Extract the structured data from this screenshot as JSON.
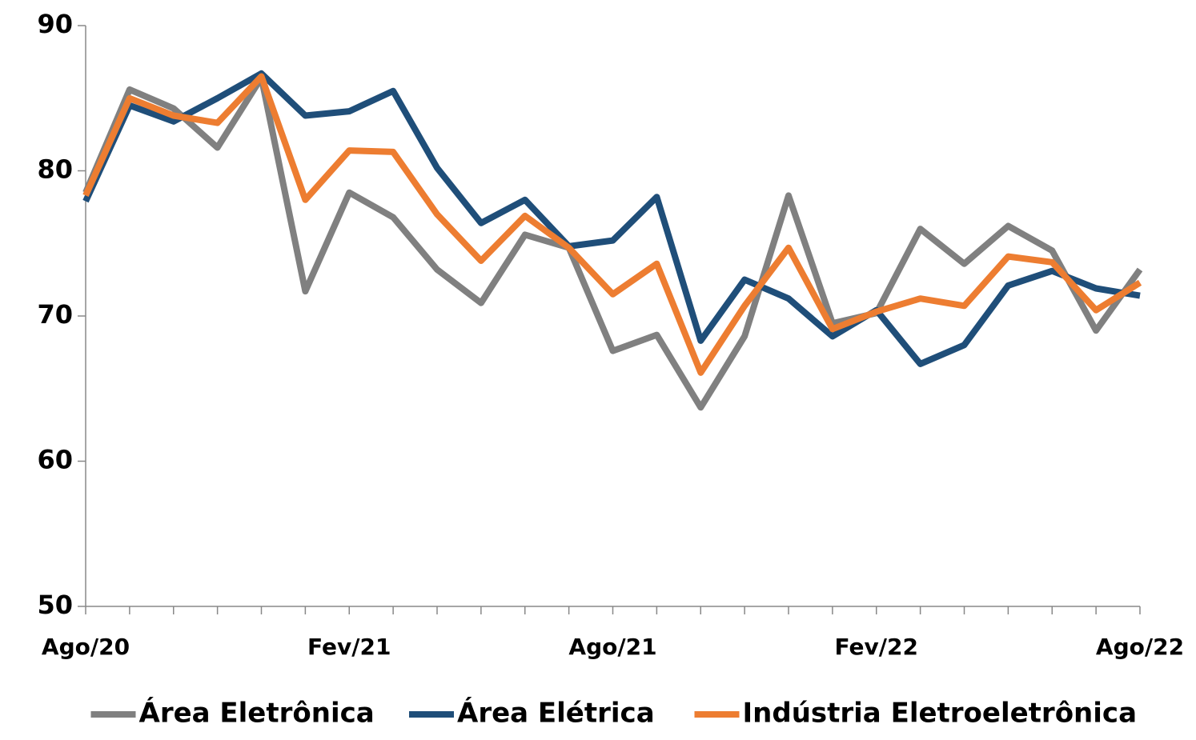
{
  "chart_data": {
    "type": "line",
    "categories": [
      "Ago/20",
      null,
      null,
      null,
      null,
      null,
      "Fev/21",
      null,
      null,
      null,
      null,
      null,
      "Ago/21",
      null,
      null,
      null,
      null,
      null,
      "Fev/22",
      null,
      null,
      null,
      null,
      null,
      "Ago/22"
    ],
    "series": [
      {
        "name": "Área Eletrônica",
        "color": "#808080",
        "values": [
          78.5,
          85.6,
          84.3,
          81.6,
          86.4,
          71.7,
          78.5,
          76.8,
          73.2,
          70.9,
          75.6,
          74.7,
          67.6,
          68.7,
          63.7,
          68.6,
          78.3,
          69.5,
          70.2,
          76.0,
          73.6,
          76.2,
          74.5,
          69.0,
          73.2
        ]
      },
      {
        "name": "Área Elétrica",
        "color": "#1f4e79",
        "values": [
          77.9,
          84.5,
          83.4,
          85.0,
          86.7,
          83.8,
          84.1,
          85.5,
          80.2,
          76.4,
          78.0,
          74.8,
          75.2,
          78.2,
          68.3,
          72.5,
          71.2,
          68.6,
          70.4,
          66.7,
          68.0,
          72.1,
          73.1,
          71.9,
          71.4
        ]
      },
      {
        "name": "Indústria Eletroeletrônica",
        "color": "#ed7d31",
        "values": [
          78.3,
          85.0,
          83.8,
          83.3,
          86.5,
          78.0,
          81.4,
          81.3,
          77.0,
          73.8,
          76.9,
          74.7,
          71.5,
          73.6,
          66.1,
          70.7,
          74.7,
          69.1,
          70.3,
          71.2,
          70.7,
          74.1,
          73.7,
          70.4,
          72.3
        ]
      }
    ],
    "ylim": [
      50,
      90
    ],
    "yticks": [
      50,
      60,
      70,
      80,
      90
    ],
    "legend": "bottom"
  }
}
